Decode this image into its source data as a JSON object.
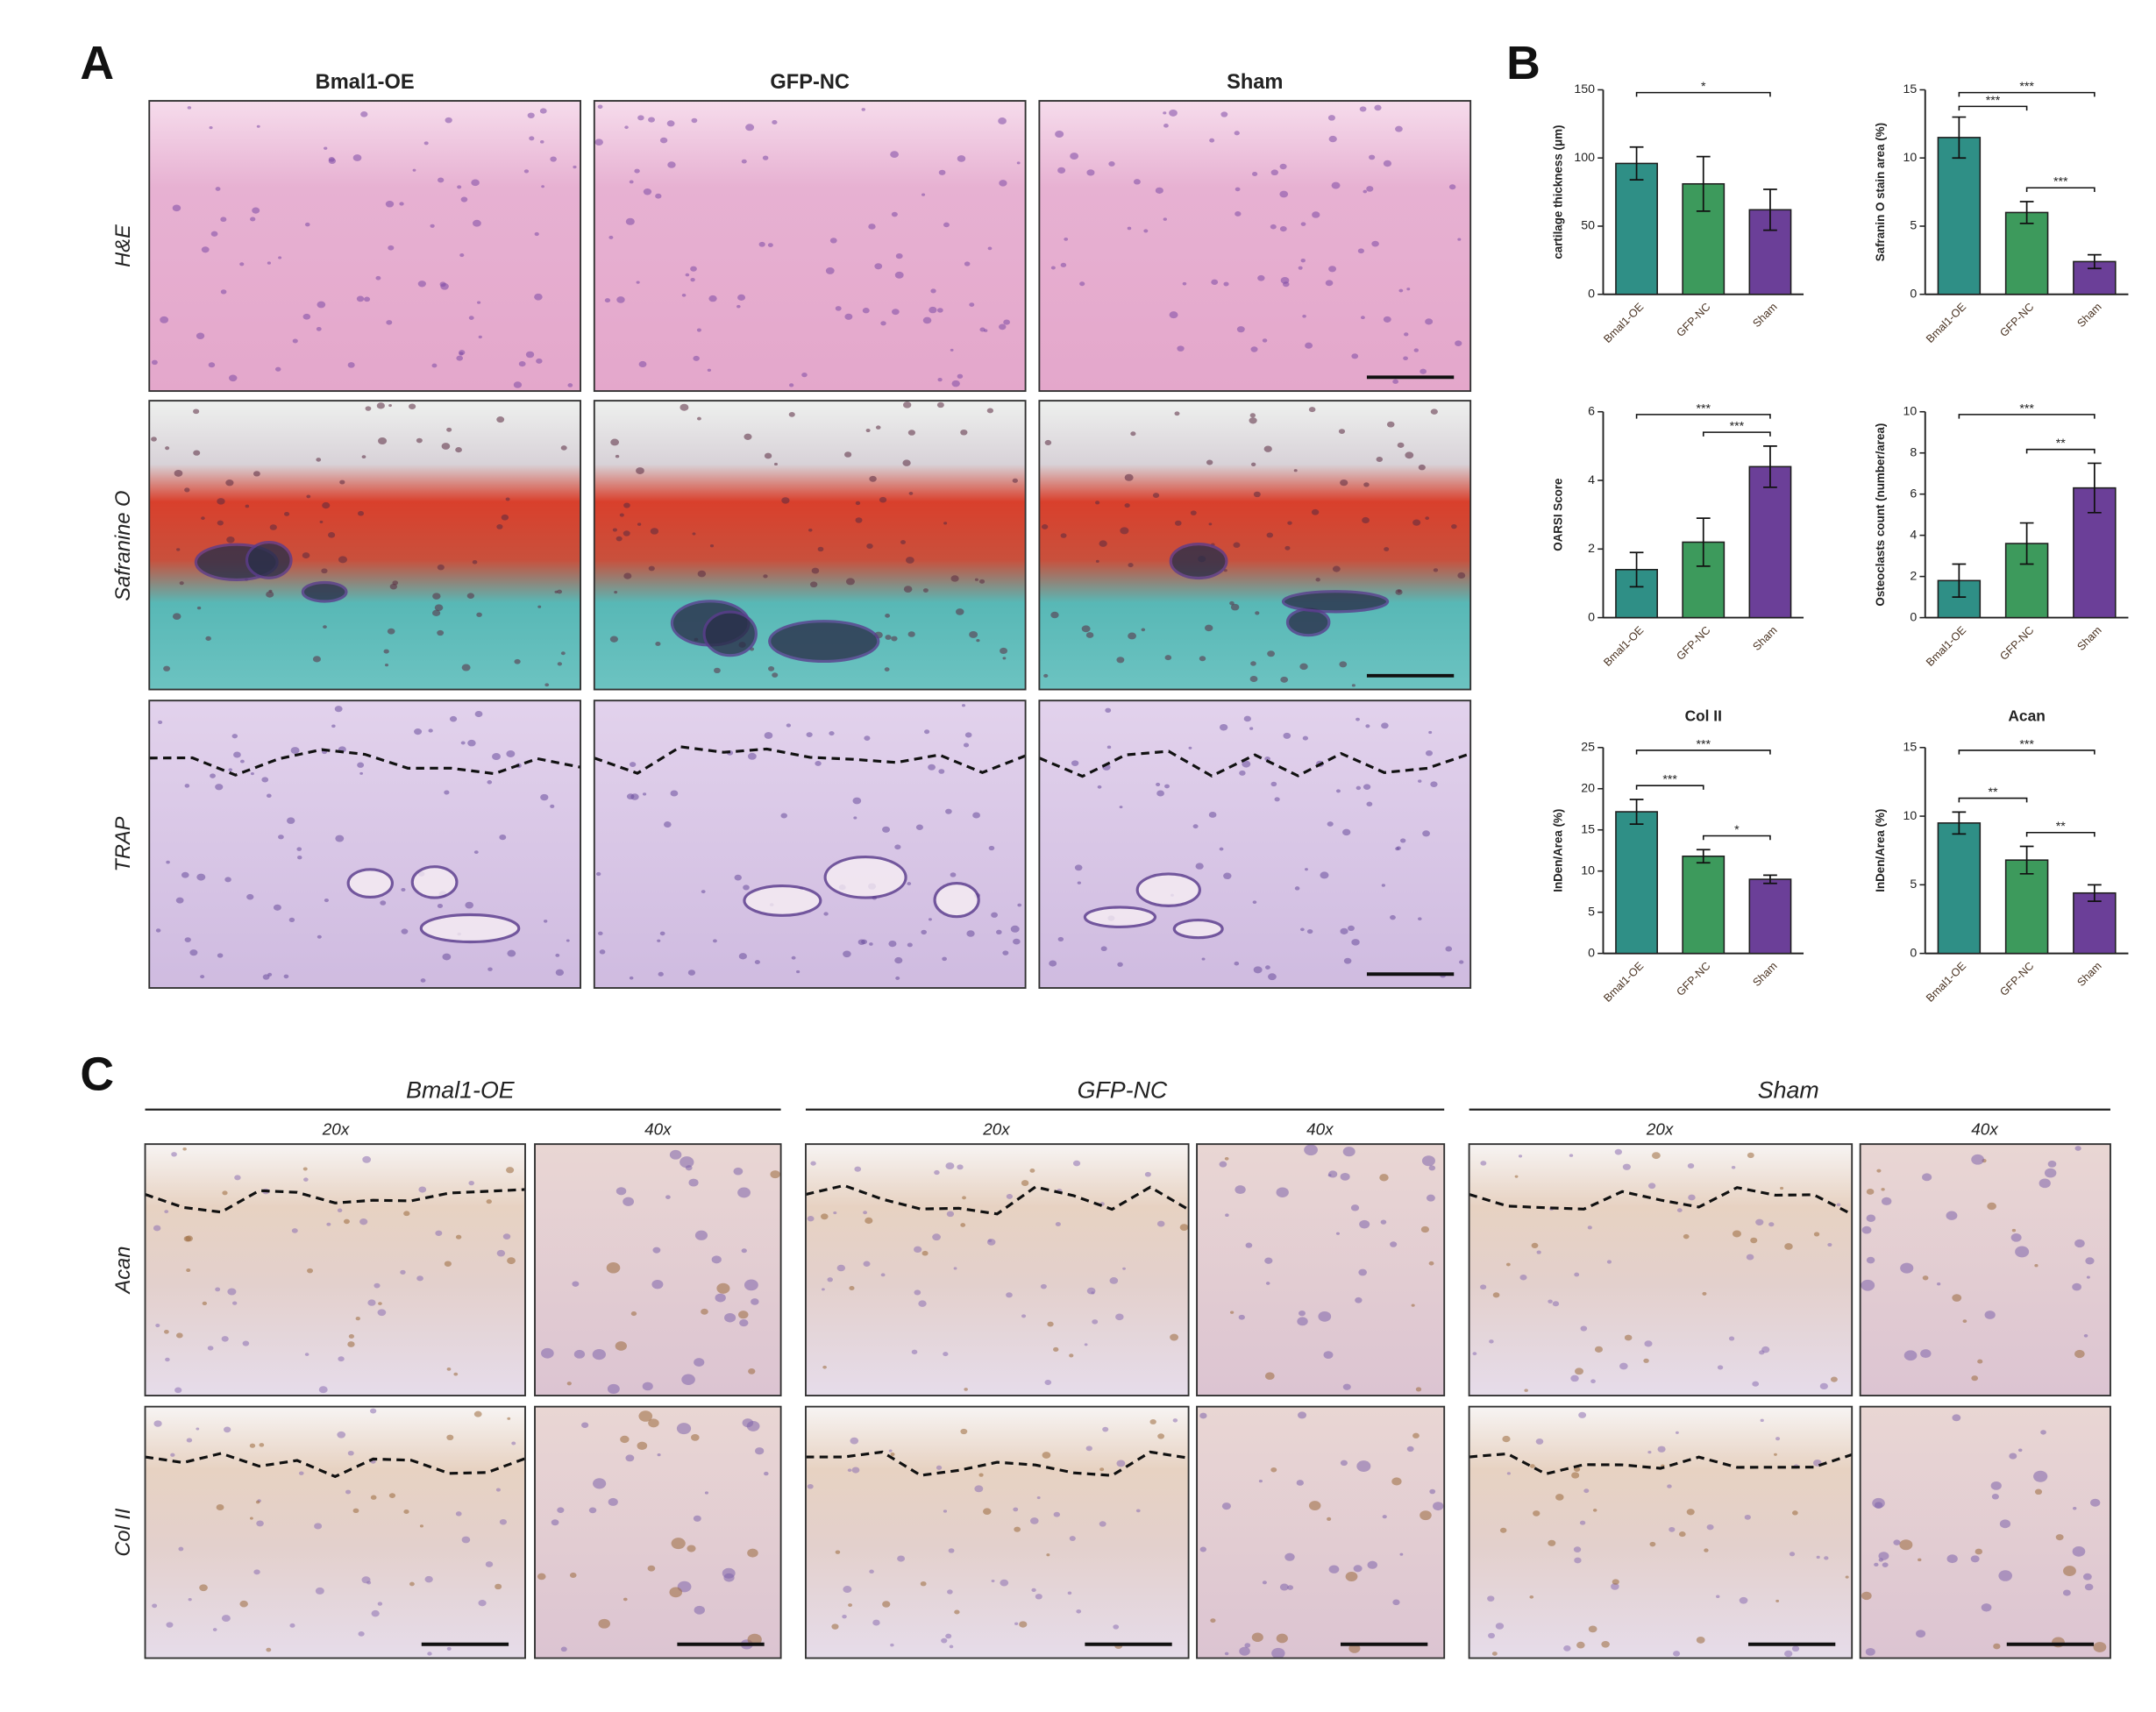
{
  "panel_a": {
    "label": "A",
    "columns": [
      "Bmal1-OE",
      "GFP-NC",
      "Sham"
    ],
    "rows": [
      "H&E",
      "Safranine O",
      "TRAP"
    ]
  },
  "panel_b": {
    "label": "B"
  },
  "chart_data": [
    {
      "type": "bar",
      "y_label": "cartilage thickness (μm)",
      "categories": [
        "Bmal1-OE",
        "GFP-NC",
        "Sham"
      ],
      "values": [
        96,
        81,
        62
      ],
      "errors": [
        12,
        20,
        15
      ],
      "colors": [
        "#2f8f86",
        "#3d9a5c",
        "#6b3f98"
      ],
      "ylim": [
        0,
        150
      ],
      "yticks": [
        0,
        50,
        100,
        150
      ],
      "significance": [
        {
          "pair": [
            0,
            2
          ],
          "label": "*"
        }
      ]
    },
    {
      "type": "bar",
      "y_label": "Safranin O stain area (%)",
      "categories": [
        "Bmal1-OE",
        "GFP-NC",
        "Sham"
      ],
      "values": [
        11.5,
        6.0,
        2.4
      ],
      "errors": [
        1.5,
        0.8,
        0.5
      ],
      "colors": [
        "#2f8f86",
        "#3d9a5c",
        "#6b3f98"
      ],
      "ylim": [
        0,
        15
      ],
      "yticks": [
        0,
        5,
        10,
        15
      ],
      "significance": [
        {
          "pair": [
            0,
            2
          ],
          "label": "***"
        },
        {
          "pair": [
            0,
            1
          ],
          "label": "***"
        },
        {
          "pair": [
            1,
            2
          ],
          "label": "***"
        }
      ]
    },
    {
      "type": "bar",
      "y_label": "OARSI Score",
      "categories": [
        "Bmal1-OE",
        "GFP-NC",
        "Sham"
      ],
      "values": [
        1.4,
        2.2,
        4.4
      ],
      "errors": [
        0.5,
        0.7,
        0.6
      ],
      "colors": [
        "#2f8f86",
        "#3d9a5c",
        "#6b3f98"
      ],
      "ylim": [
        0,
        6
      ],
      "yticks": [
        0,
        2,
        4,
        6
      ],
      "significance": [
        {
          "pair": [
            0,
            2
          ],
          "label": "***"
        },
        {
          "pair": [
            1,
            2
          ],
          "label": "***"
        }
      ]
    },
    {
      "type": "bar",
      "y_label": "Osteoclasts count  (number/area)",
      "categories": [
        "Bmal1-OE",
        "GFP-NC",
        "Sham"
      ],
      "values": [
        1.8,
        3.6,
        6.3
      ],
      "errors": [
        0.8,
        1.0,
        1.2
      ],
      "colors": [
        "#2f8f86",
        "#3d9a5c",
        "#6b3f98"
      ],
      "ylim": [
        0,
        10
      ],
      "yticks": [
        0,
        2,
        4,
        6,
        8,
        10
      ],
      "significance": [
        {
          "pair": [
            0,
            2
          ],
          "label": "***"
        },
        {
          "pair": [
            1,
            2
          ],
          "label": "**"
        }
      ]
    },
    {
      "type": "bar",
      "title": "Col II",
      "y_label": "InDen/Area (%)",
      "categories": [
        "Bmal1-OE",
        "GFP-NC",
        "Sham"
      ],
      "values": [
        17.2,
        11.8,
        9.0
      ],
      "errors": [
        1.5,
        0.8,
        0.5
      ],
      "colors": [
        "#2f8f86",
        "#3d9a5c",
        "#6b3f98"
      ],
      "ylim": [
        0,
        25
      ],
      "yticks": [
        0,
        5,
        10,
        15,
        20,
        25
      ],
      "significance": [
        {
          "pair": [
            0,
            2
          ],
          "label": "***"
        },
        {
          "pair": [
            0,
            1
          ],
          "label": "***"
        },
        {
          "pair": [
            1,
            2
          ],
          "label": "*"
        }
      ]
    },
    {
      "type": "bar",
      "title": "Acan",
      "y_label": "InDen/Area (%)",
      "categories": [
        "Bmal1-OE",
        "GFP-NC",
        "Sham"
      ],
      "values": [
        9.5,
        6.8,
        4.4
      ],
      "errors": [
        0.8,
        1.0,
        0.6
      ],
      "colors": [
        "#2f8f86",
        "#3d9a5c",
        "#6b3f98"
      ],
      "ylim": [
        0,
        15
      ],
      "yticks": [
        0,
        5,
        10,
        15
      ],
      "significance": [
        {
          "pair": [
            0,
            2
          ],
          "label": "***"
        },
        {
          "pair": [
            0,
            1
          ],
          "label": "**"
        },
        {
          "pair": [
            1,
            2
          ],
          "label": "**"
        }
      ]
    }
  ],
  "panel_c": {
    "label": "C",
    "groups": [
      "Bmal1-OE",
      "GFP-NC",
      "Sham"
    ],
    "magnifications": [
      "20x",
      "40x"
    ],
    "rows": [
      "Acan",
      "Col II"
    ]
  }
}
